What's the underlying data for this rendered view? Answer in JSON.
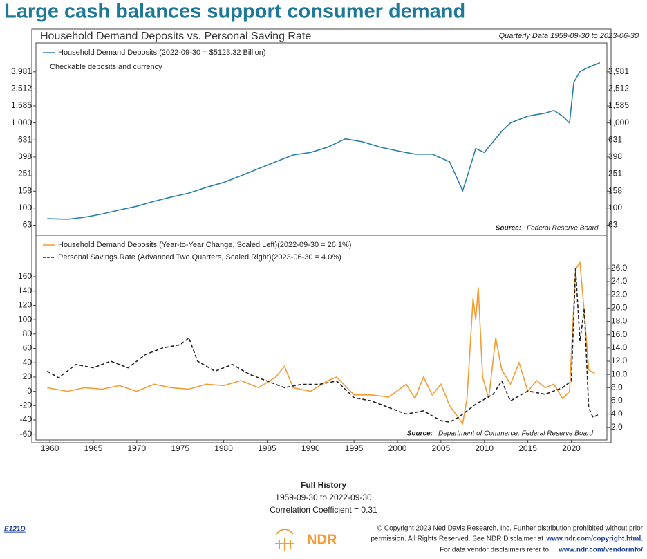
{
  "title": "Large cash balances support consumer demand",
  "chart_data": [
    {
      "type": "line",
      "title": "Household Demand Deposits vs. Personal Saving Rate",
      "subtitle": "Quarterly Data 1959-09-30 to 2023-06-30",
      "annotation": "Checkable deposits and currency",
      "source_label": "Source:",
      "source": "Federal Reserve Board",
      "log_scale": true,
      "xlim": [
        1958.4,
        2024.1
      ],
      "ylim": [
        48,
        8700
      ],
      "yticks": [
        63,
        100,
        158,
        251,
        398,
        631,
        {
          "value": 1000,
          "label": "1,000"
        },
        {
          "value": 1585,
          "label": "1,585"
        },
        {
          "value": 2512,
          "label": "2,512"
        },
        {
          "value": 3981,
          "label": "3,981"
        }
      ],
      "series": [
        {
          "name": "Household Demand Deposits (2022-09-30 = $5123.32 Billion)",
          "color": "#2a7fa8",
          "x": [
            1959.7,
            1962,
            1964,
            1966,
            1968,
            1970,
            1972,
            1974,
            1976,
            1978,
            1980,
            1982,
            1984,
            1986,
            1988,
            1990,
            1992,
            1994,
            1996,
            1998,
            2000,
            2002,
            2004,
            2006,
            2007.5,
            2008,
            2009,
            2010,
            2011,
            2012,
            2013,
            2014,
            2015,
            2016,
            2017,
            2018,
            2019,
            2019.8,
            2020.3,
            2021,
            2022,
            2023.3
          ],
          "values": [
            75,
            74,
            78,
            85,
            95,
            105,
            120,
            135,
            150,
            175,
            200,
            240,
            290,
            350,
            420,
            450,
            520,
            650,
            600,
            520,
            470,
            430,
            430,
            350,
            160,
            230,
            500,
            450,
            600,
            800,
            1000,
            1100,
            1200,
            1250,
            1300,
            1400,
            1200,
            1000,
            3000,
            4000,
            4500,
            5100
          ]
        }
      ]
    },
    {
      "type": "line",
      "source_label": "Source:",
      "source": "Department of Commerce, Federal Reserve Board",
      "xlim": [
        1958.4,
        2024.1
      ],
      "xticks": [
        1960,
        1965,
        1970,
        1975,
        1980,
        1985,
        1990,
        1995,
        2000,
        2005,
        2010,
        2015,
        2020
      ],
      "ylim": [
        -68,
        218
      ],
      "yticks": [
        -60,
        -40,
        -20,
        0,
        20,
        40,
        60,
        80,
        100,
        120,
        140,
        160
      ],
      "y2lim": [
        0.1,
        31
      ],
      "y2ticks": [
        {
          "value": 2,
          "label": "2.0"
        },
        {
          "value": 4,
          "label": "4.0"
        },
        {
          "value": 6,
          "label": "6.0"
        },
        {
          "value": 8,
          "label": "8.0"
        },
        {
          "value": 10,
          "label": "10.0"
        },
        {
          "value": 12,
          "label": "12.0"
        },
        {
          "value": 14,
          "label": "14.0"
        },
        {
          "value": 16,
          "label": "16.0"
        },
        {
          "value": 18,
          "label": "18.0"
        },
        {
          "value": 20,
          "label": "20.0"
        },
        {
          "value": 22,
          "label": "22.0"
        },
        {
          "value": 24,
          "label": "24.0"
        },
        {
          "value": 26,
          "label": "26.0"
        }
      ],
      "series": [
        {
          "name": "Household Demand Deposits (Year-to-Year Change, Scaled Left)(2022-09-30 = 26.1%)",
          "color": "#f39c34",
          "dashed": false,
          "x": [
            1959.7,
            1962,
            1964,
            1966,
            1968,
            1970,
            1972,
            1974,
            1976,
            1978,
            1980,
            1982,
            1984,
            1986,
            1987,
            1988,
            1990,
            1992,
            1993,
            1995,
            1997,
            1999,
            2001,
            2002,
            2003,
            2004,
            2005,
            2006,
            2007.5,
            2008,
            2008.7,
            2009,
            2009.3,
            2009.8,
            2010.5,
            2011.3,
            2012,
            2013,
            2014,
            2015,
            2016,
            2017,
            2018,
            2019,
            2019.8,
            2020.5,
            2021,
            2021.5,
            2022,
            2022.7
          ],
          "values": [
            5,
            0,
            5,
            3,
            8,
            0,
            10,
            5,
            3,
            10,
            8,
            15,
            5,
            20,
            35,
            5,
            0,
            15,
            20,
            -5,
            -5,
            -8,
            10,
            -10,
            20,
            -5,
            10,
            -20,
            -45,
            -10,
            130,
            100,
            145,
            20,
            -10,
            75,
            30,
            10,
            40,
            0,
            15,
            5,
            10,
            -10,
            0,
            170,
            180,
            110,
            30,
            25
          ]
        },
        {
          "name": "Personal Savings Rate (Advanced Two Quarters, Scaled Right)(2023-06-30 = 4.0%)",
          "color": "#222222",
          "dashed": true,
          "axis": "y2",
          "x": [
            1959.7,
            1961,
            1963,
            1965,
            1967,
            1969,
            1971,
            1973,
            1975,
            1976,
            1977,
            1979,
            1981,
            1983,
            1985,
            1987,
            1989,
            1991,
            1993,
            1995,
            1997,
            1999,
            2001,
            2003,
            2005,
            2006,
            2007,
            2008,
            2009,
            2011,
            2012,
            2013,
            2015,
            2017,
            2019,
            2020,
            2020.5,
            2021,
            2021.5,
            2022,
            2022.5,
            2023.2
          ],
          "values": [
            10.5,
            9.5,
            11.5,
            11,
            12,
            11,
            13,
            14,
            14.5,
            15.5,
            12,
            10.5,
            11.5,
            10,
            9,
            8,
            8.5,
            8.5,
            9,
            6.5,
            6,
            5,
            4,
            4.5,
            3,
            2.8,
            3.5,
            4.5,
            5.5,
            7,
            9,
            6,
            7.5,
            7,
            8,
            9,
            26,
            15,
            20,
            5,
            3.5,
            4
          ]
        }
      ]
    }
  ],
  "footer": {
    "heading": "Full History",
    "range": "1959-09-30 to 2022-09-30",
    "correlation": "Correlation Coefficient = 0.31",
    "code": "E121D",
    "logo": "NDR",
    "copyright": [
      "© Copyright 2023 Ned Davis Research, Inc. Further distribution prohibited without prior",
      "permission. All Rights Reserved. See NDR Disclaimer at",
      "For data vendor disclaimers refer to"
    ],
    "links": [
      "www.ndr.com/copyright.html.",
      "www.ndr.com/vendorinfo/"
    ]
  }
}
